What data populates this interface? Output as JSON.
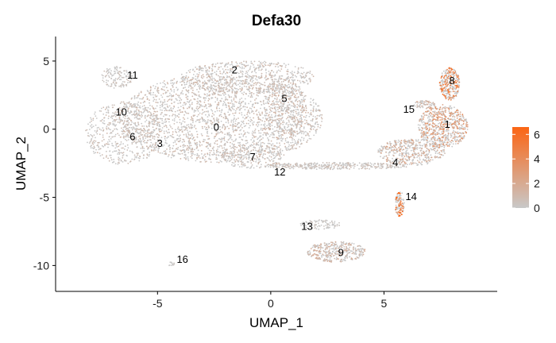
{
  "chart_data": {
    "type": "scatter",
    "title": "Defa30",
    "xlabel": "UMAP_1",
    "ylabel": "UMAP_2",
    "xlim": [
      -9.5,
      10
    ],
    "ylim": [
      -11.9,
      6.8
    ],
    "x_ticks": [
      -5,
      0,
      5
    ],
    "y_ticks": [
      -10,
      -5,
      0,
      5
    ],
    "grid": false,
    "color_scale": {
      "min": 0,
      "max": 6.6,
      "ticks": [
        0,
        2,
        4,
        6
      ],
      "low_color": "#c8c8c8",
      "high_color": "#fb6514",
      "legend_position": "right"
    },
    "cluster_labels": [
      {
        "label": "0",
        "x": -2.4,
        "y": 0.1
      },
      {
        "label": "1",
        "x": 7.8,
        "y": 0.3
      },
      {
        "label": "2",
        "x": -1.6,
        "y": 4.3
      },
      {
        "label": "3",
        "x": -4.9,
        "y": -1.1
      },
      {
        "label": "4",
        "x": 5.5,
        "y": -2.5
      },
      {
        "label": "5",
        "x": 0.6,
        "y": 2.2
      },
      {
        "label": "6",
        "x": -6.1,
        "y": -0.6
      },
      {
        "label": "7",
        "x": -0.8,
        "y": -2.1
      },
      {
        "label": "8",
        "x": 8.0,
        "y": 3.5
      },
      {
        "label": "9",
        "x": 3.1,
        "y": -9.1
      },
      {
        "label": "10",
        "x": -6.6,
        "y": 1.2
      },
      {
        "label": "11",
        "x": -6.1,
        "y": 3.9
      },
      {
        "label": "12",
        "x": 0.4,
        "y": -3.2
      },
      {
        "label": "13",
        "x": 1.6,
        "y": -7.2
      },
      {
        "label": "14",
        "x": 6.2,
        "y": -5.0
      },
      {
        "label": "15",
        "x": 6.1,
        "y": 1.4
      },
      {
        "label": "16",
        "x": -3.9,
        "y": -9.6
      }
    ],
    "regions": [
      {
        "cluster": "main-blob",
        "cx": -2.2,
        "cy": 0.8,
        "rx": 4.5,
        "ry": 3.3,
        "n": 2400,
        "expr": 0.8
      },
      {
        "cluster": "main-left",
        "cx": -6.5,
        "cy": -0.3,
        "rx": 1.7,
        "ry": 2.3,
        "n": 550,
        "expr": 0.7
      },
      {
        "cluster": "main-top",
        "cx": -1.0,
        "cy": 3.8,
        "rx": 3.0,
        "ry": 1.2,
        "n": 600,
        "expr": 0.8
      },
      {
        "cluster": "5",
        "cx": 0.6,
        "cy": 1.5,
        "rx": 0.9,
        "ry": 2.4,
        "n": 350,
        "expr": 1.0
      },
      {
        "cluster": "11",
        "cx": -6.8,
        "cy": 3.8,
        "rx": 0.7,
        "ry": 0.8,
        "n": 130,
        "expr": 0.5
      },
      {
        "cluster": "7",
        "cx": -0.8,
        "cy": -2.0,
        "rx": 1.4,
        "ry": 0.9,
        "n": 230,
        "expr": 0.8
      },
      {
        "cluster": "bridge",
        "cx": 2.9,
        "cy": -2.7,
        "rx": 3.2,
        "ry": 0.25,
        "n": 350,
        "expr": 0.6
      },
      {
        "cluster": "4",
        "cx": 6.2,
        "cy": -1.7,
        "rx": 1.5,
        "ry": 1.0,
        "n": 450,
        "expr": 1.6
      },
      {
        "cluster": "1",
        "cx": 7.6,
        "cy": 0.2,
        "rx": 1.1,
        "ry": 1.6,
        "n": 650,
        "expr": 2.6
      },
      {
        "cluster": "8",
        "cx": 7.9,
        "cy": 3.3,
        "rx": 0.45,
        "ry": 1.2,
        "n": 280,
        "expr": 4.4
      },
      {
        "cluster": "15",
        "cx": 6.8,
        "cy": 1.8,
        "rx": 0.5,
        "ry": 0.3,
        "n": 70,
        "expr": 1.2
      },
      {
        "cluster": "14",
        "cx": 5.7,
        "cy": -5.5,
        "rx": 0.22,
        "ry": 0.9,
        "n": 110,
        "expr": 5.6
      },
      {
        "cluster": "13",
        "cx": 2.2,
        "cy": -7.0,
        "rx": 0.9,
        "ry": 0.35,
        "n": 90,
        "expr": 0.3
      },
      {
        "cluster": "9",
        "cx": 2.9,
        "cy": -9.0,
        "rx": 1.3,
        "ry": 0.75,
        "n": 380,
        "expr": 1.3
      },
      {
        "cluster": "16",
        "cx": -4.4,
        "cy": -9.9,
        "rx": 0.15,
        "ry": 0.15,
        "n": 12,
        "expr": 0.2
      }
    ]
  }
}
